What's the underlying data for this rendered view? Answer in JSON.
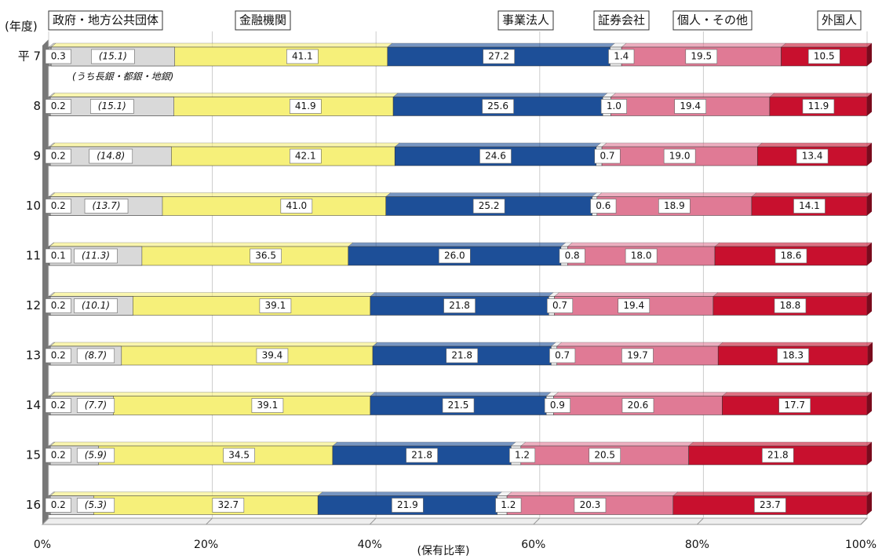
{
  "chart_data": {
    "type": "stacked-bar-horizontal",
    "y_axis_label": "(年度)",
    "x_axis_label": "(保有比率)",
    "categories": [
      "平 7",
      "8",
      "9",
      "10",
      "11",
      "12",
      "13",
      "14",
      "15",
      "16"
    ],
    "xlim": [
      0,
      100
    ],
    "xticks": [
      {
        "value": 0,
        "label": "0%"
      },
      {
        "value": 20,
        "label": "20%"
      },
      {
        "value": 40,
        "label": "40%"
      },
      {
        "value": 60,
        "label": "60%"
      },
      {
        "value": 80,
        "label": "80%"
      },
      {
        "value": 100,
        "label": "100%"
      }
    ],
    "grid": true,
    "series": [
      {
        "name": "政府・地方公共団体",
        "color": "#a9a9a9",
        "values": [
          0.3,
          0.2,
          0.2,
          0.2,
          0.1,
          0.2,
          0.2,
          0.2,
          0.2,
          0.2
        ],
        "value_labels": [
          "0.3",
          "0.2",
          "0.2",
          "0.2",
          "0.1",
          "0.2",
          "0.2",
          "0.2",
          "0.2",
          "0.2"
        ]
      },
      {
        "name": "金融機関",
        "color": "#f6f07a",
        "values": [
          41.1,
          41.9,
          42.1,
          41.0,
          36.5,
          39.1,
          39.4,
          39.1,
          34.5,
          32.7
        ],
        "value_labels": [
          "41.1",
          "41.9",
          "42.1",
          "41.0",
          "36.5",
          "39.1",
          "39.4",
          "39.1",
          "34.5",
          "32.7"
        ]
      },
      {
        "name": "事業法人",
        "color": "#1d4f98",
        "values": [
          27.2,
          25.6,
          24.6,
          25.2,
          26.0,
          21.8,
          21.8,
          21.5,
          21.8,
          21.9
        ],
        "value_labels": [
          "27.2",
          "25.6",
          "24.6",
          "25.2",
          "26.0",
          "21.8",
          "21.8",
          "21.5",
          "21.8",
          "21.9"
        ]
      },
      {
        "name": "証券会社",
        "color": "#eeeeee",
        "values": [
          1.4,
          1.0,
          0.7,
          0.6,
          0.8,
          0.7,
          0.7,
          0.9,
          1.2,
          1.2
        ],
        "value_labels": [
          "1.4",
          "1.0",
          "0.7",
          "0.6",
          "0.8",
          "0.7",
          "0.7",
          "0.9",
          "1.2",
          "1.2"
        ]
      },
      {
        "name": "個人・その他",
        "color": "#e07a95",
        "values": [
          19.5,
          19.4,
          19.0,
          18.9,
          18.0,
          19.4,
          19.7,
          20.6,
          20.5,
          20.3
        ],
        "value_labels": [
          "19.5",
          "19.4",
          "19.0",
          "18.9",
          "18.0",
          "19.4",
          "19.7",
          "20.6",
          "20.5",
          "20.3"
        ]
      },
      {
        "name": "外国人",
        "color": "#c8102e",
        "values": [
          10.5,
          11.9,
          13.4,
          14.1,
          18.6,
          18.8,
          18.3,
          17.7,
          21.8,
          23.7
        ],
        "value_labels": [
          "10.5",
          "11.9",
          "13.4",
          "14.1",
          "18.6",
          "18.8",
          "18.3",
          "17.7",
          "21.8",
          "23.7"
        ]
      }
    ],
    "subset": {
      "name": "(うち長銀・都銀・地銀)",
      "color": "#d9d9d9",
      "values": [
        15.1,
        15.1,
        14.8,
        13.7,
        11.3,
        10.1,
        8.7,
        7.7,
        5.9,
        5.3
      ],
      "value_labels": [
        "(15.1)",
        "(15.1)",
        "(14.8)",
        "(13.7)",
        "(11.3)",
        "(10.1)",
        "(8.7)",
        "(7.7)",
        "(5.9)",
        "(5.3)"
      ]
    }
  }
}
